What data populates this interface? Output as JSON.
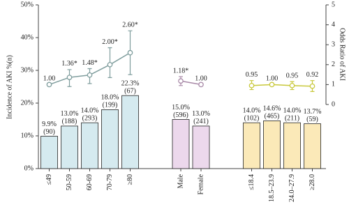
{
  "chart_data": {
    "type": "bar",
    "y_label": "Incidence of AKI  %(n)",
    "y2_label": "Odds Ratio of AKI",
    "categories": [
      "≤49",
      "50-59",
      "60-69",
      "70-79",
      "≥80",
      null,
      "Male",
      "Female",
      null,
      "≤18.4",
      "18.5–23.9",
      "24.0–27.9",
      "≥28.0"
    ],
    "ylim": [
      0,
      50
    ],
    "yticks": [
      {
        "value": 0,
        "label": "0%"
      },
      {
        "value": 10,
        "label": "10%"
      },
      {
        "value": 20,
        "label": "20%"
      },
      {
        "value": 30,
        "label": "30%"
      },
      {
        "value": 40,
        "label": "40%"
      },
      {
        "value": 50,
        "label": "50%"
      }
    ],
    "y2lim": [
      0,
      5
    ],
    "y2ticks": [
      0,
      1,
      2,
      3,
      4,
      5
    ],
    "bars": {
      "values": [
        9.9,
        13.0,
        14.0,
        18.0,
        22.3,
        null,
        15.0,
        13.0,
        null,
        14.0,
        14.6,
        14.0,
        13.7
      ],
      "value_labels": [
        "9.9%",
        "13.0%",
        "14.0%",
        "18.0%",
        "22.3%",
        null,
        "15.0%",
        "13.0%",
        null,
        "14.0%",
        "14.6%",
        "14.0%",
        "13.7%"
      ],
      "count_labels": [
        "(90)",
        "(188)",
        "(293)",
        "(199)",
        "(67)",
        null,
        "(596)",
        "(241)",
        null,
        "(102)",
        "(465)",
        "(211)",
        "(59)"
      ],
      "colors": [
        "#d5eaef",
        "#d5eaef",
        "#d5eaef",
        "#d5eaef",
        "#d5eaef",
        null,
        "#ecd8ec",
        "#ecd8ec",
        null,
        "#fbe9b8",
        "#fbe9b8",
        "#fbe9b8",
        "#fbe9b8"
      ]
    },
    "series": [
      {
        "type": "line",
        "axis": "y2",
        "color": "#7f9d9d",
        "values": [
          1.0,
          1.36,
          1.48,
          2.0,
          2.6,
          null,
          null,
          null,
          null,
          null,
          null,
          null,
          null
        ],
        "value_labels": [
          "1.00",
          "1.36*",
          "1.48*",
          "2.00*",
          "2.60*",
          null,
          null,
          null,
          null,
          null,
          null,
          null,
          null
        ],
        "ci_low": [
          null,
          0.9,
          1.05,
          1.35,
          1.5,
          null,
          null,
          null,
          null,
          null,
          null,
          null,
          null
        ],
        "ci_high": [
          null,
          1.75,
          1.8,
          2.85,
          3.7,
          null,
          null,
          null,
          null,
          null,
          null,
          null,
          null
        ]
      },
      {
        "type": "line",
        "axis": "y2",
        "color": "#a98aa8",
        "values": [
          null,
          null,
          null,
          null,
          null,
          null,
          1.18,
          1.0,
          null,
          null,
          null,
          null,
          null
        ],
        "value_labels": [
          null,
          null,
          null,
          null,
          null,
          null,
          "1.18*",
          "1.00",
          null,
          null,
          null,
          null,
          null
        ],
        "ci_low": [
          null,
          null,
          null,
          null,
          null,
          null,
          0.95,
          null,
          null,
          null,
          null,
          null,
          null
        ],
        "ci_high": [
          null,
          null,
          null,
          null,
          null,
          null,
          1.4,
          null,
          null,
          null,
          null,
          null,
          null
        ]
      },
      {
        "type": "line",
        "axis": "y2",
        "color": "#c8c83a",
        "values": [
          null,
          null,
          null,
          null,
          null,
          null,
          null,
          null,
          null,
          0.95,
          1.0,
          0.95,
          0.92
        ],
        "value_labels": [
          null,
          null,
          null,
          null,
          null,
          null,
          null,
          null,
          null,
          "0.95",
          "1.00",
          "0.95",
          "0.92"
        ],
        "ci_low": [
          null,
          null,
          null,
          null,
          null,
          null,
          null,
          null,
          null,
          0.75,
          null,
          0.75,
          0.65
        ],
        "ci_high": [
          null,
          null,
          null,
          null,
          null,
          null,
          null,
          null,
          null,
          1.2,
          null,
          1.15,
          1.2
        ]
      }
    ]
  }
}
